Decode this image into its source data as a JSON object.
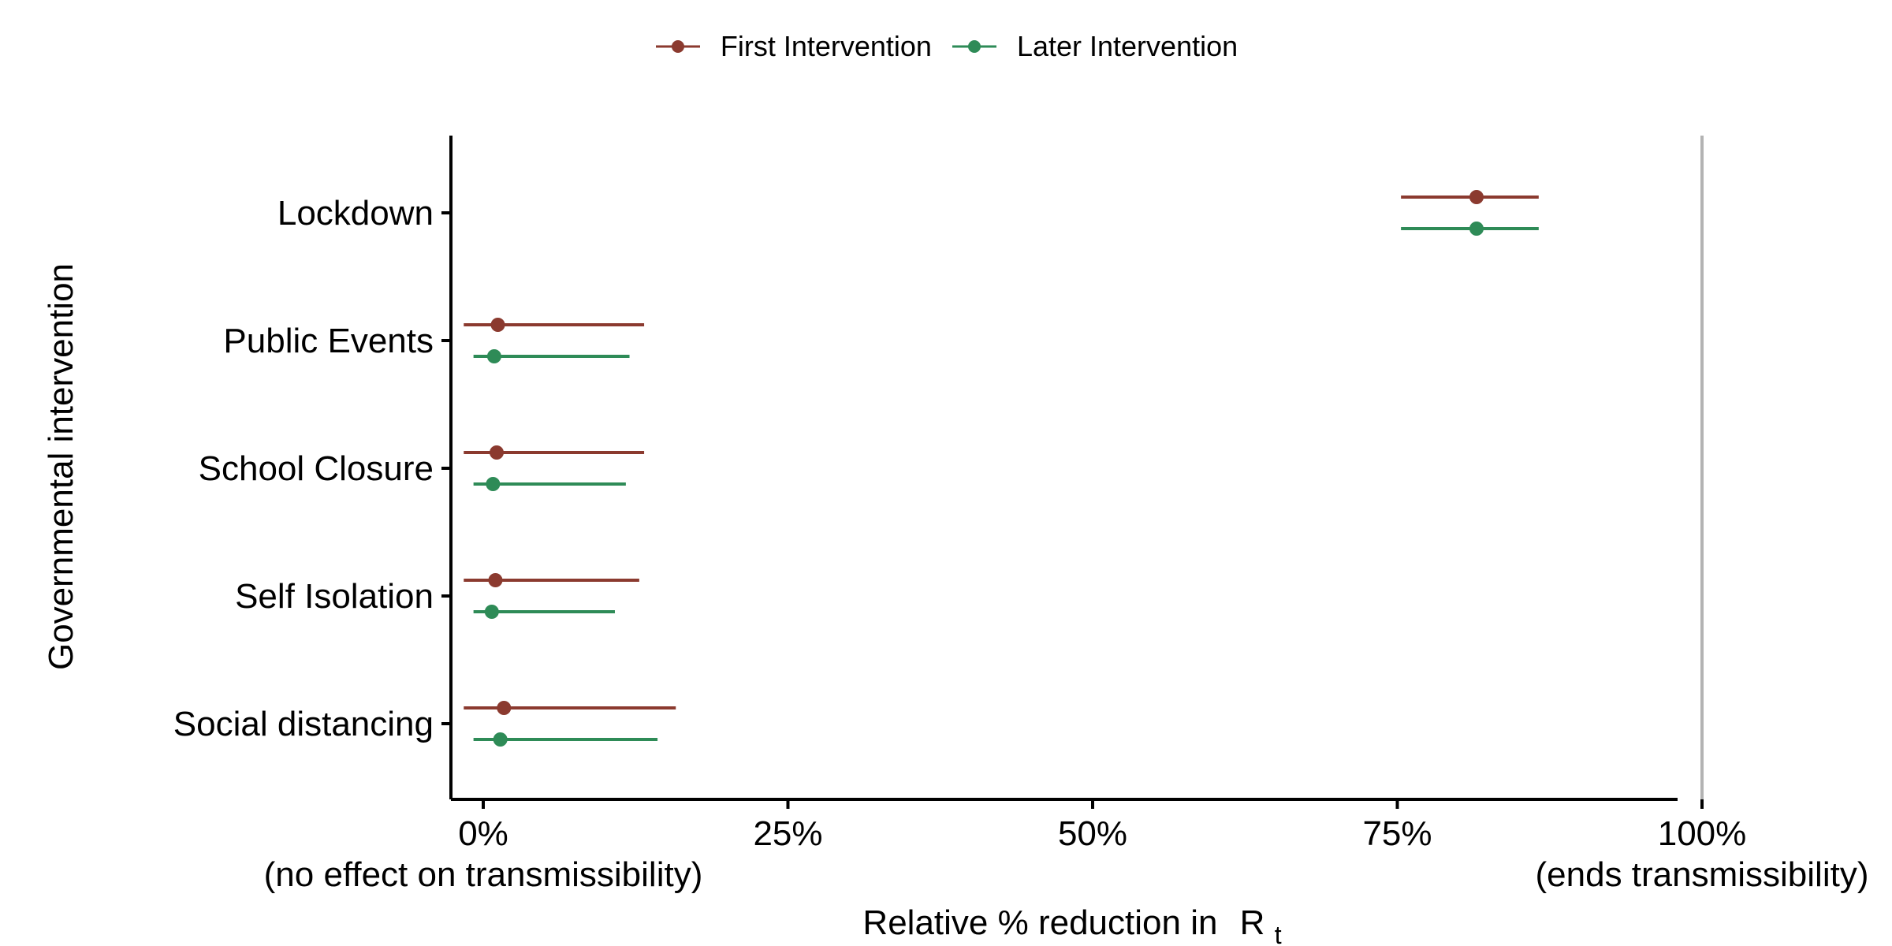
{
  "chart_data": {
    "type": "forest",
    "legend": {
      "position": "top-center",
      "entries": [
        {
          "label": "First Intervention",
          "color": "#8B3A2F"
        },
        {
          "label": "Later Intervention",
          "color": "#2E8B57"
        }
      ]
    },
    "ylabel": "Governmental intervention",
    "xlabel": "Relative % reduction in",
    "xlabel_symbol": "R",
    "xlabel_subscript": "t",
    "xlim": [
      -0.01,
      1.0
    ],
    "x_ticks": [
      {
        "value": 0,
        "label": "0%",
        "sublabel": "(no effect on transmissibility)"
      },
      {
        "value": 0.25,
        "label": "25%",
        "sublabel": ""
      },
      {
        "value": 0.5,
        "label": "50%",
        "sublabel": ""
      },
      {
        "value": 0.75,
        "label": "75%",
        "sublabel": ""
      },
      {
        "value": 1.0,
        "label": "100%",
        "sublabel": "(ends transmissibility)"
      }
    ],
    "reference_line": 1.0,
    "categories": [
      "Lockdown",
      "Public Events",
      "School Closure",
      "Self Isolation",
      "Social distancing"
    ],
    "series": [
      {
        "name": "First Intervention",
        "color": "#8B3A2F",
        "points": [
          {
            "category": "Lockdown",
            "estimate": 0.815,
            "lower": 0.753,
            "upper": 0.866
          },
          {
            "category": "Public Events",
            "estimate": 0.012,
            "lower": -0.016,
            "upper": 0.132
          },
          {
            "category": "School Closure",
            "estimate": 0.011,
            "lower": -0.016,
            "upper": 0.132
          },
          {
            "category": "Self Isolation",
            "estimate": 0.01,
            "lower": -0.016,
            "upper": 0.128
          },
          {
            "category": "Social distancing",
            "estimate": 0.017,
            "lower": -0.016,
            "upper": 0.158
          }
        ]
      },
      {
        "name": "Later Intervention",
        "color": "#2E8B57",
        "points": [
          {
            "category": "Lockdown",
            "estimate": 0.815,
            "lower": 0.753,
            "upper": 0.866
          },
          {
            "category": "Public Events",
            "estimate": 0.009,
            "lower": -0.008,
            "upper": 0.12
          },
          {
            "category": "School Closure",
            "estimate": 0.008,
            "lower": -0.008,
            "upper": 0.117
          },
          {
            "category": "Self Isolation",
            "estimate": 0.007,
            "lower": -0.008,
            "upper": 0.108
          },
          {
            "category": "Social distancing",
            "estimate": 0.014,
            "lower": -0.008,
            "upper": 0.143
          }
        ]
      }
    ]
  }
}
